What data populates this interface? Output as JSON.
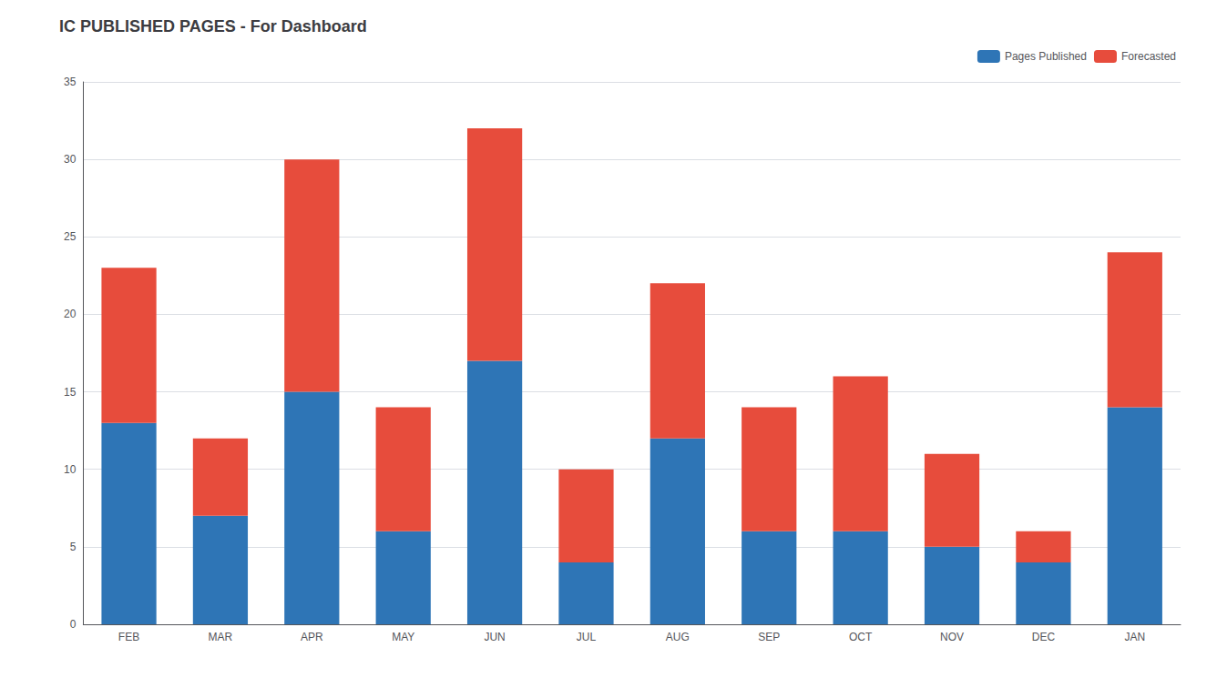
{
  "chart_data": {
    "type": "bar",
    "title": "IC PUBLISHED PAGES - For Dashboard",
    "categories": [
      "FEB",
      "MAR",
      "APR",
      "MAY",
      "JUN",
      "JUL",
      "AUG",
      "SEP",
      "OCT",
      "NOV",
      "DEC",
      "JAN"
    ],
    "series": [
      {
        "name": "Pages Published",
        "color": "#2E75B6",
        "values": [
          13,
          7,
          15,
          6,
          17,
          4,
          12,
          6,
          6,
          5,
          4,
          14
        ]
      },
      {
        "name": "Forecasted",
        "color": "#E74C3C",
        "values": [
          10,
          5,
          15,
          8,
          15,
          6,
          10,
          8,
          10,
          6,
          2,
          10
        ]
      }
    ],
    "stacked": true,
    "ylim": [
      0,
      35
    ],
    "yticks": [
      0,
      5,
      10,
      15,
      20,
      25,
      30,
      35
    ],
    "grid": true,
    "legend": "upper right"
  }
}
